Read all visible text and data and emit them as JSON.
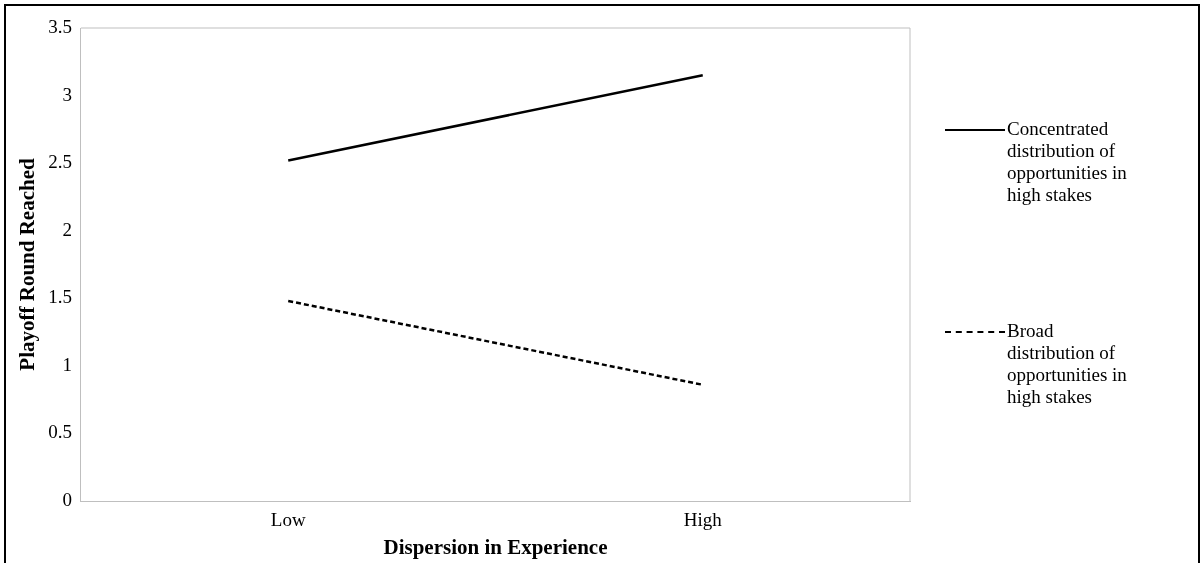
{
  "chart_data": {
    "type": "line",
    "xlabel": "Dispersion in Experience",
    "ylabel": "Playoff Round Reached",
    "categories": [
      "Low",
      "High"
    ],
    "series": [
      {
        "name": "Concentrated distribution of opportunities in high stakes",
        "color": "#000000",
        "line_style": "solid",
        "values": [
          2.52,
          3.15
        ]
      },
      {
        "name": "Broad distribution of opportunities in high stakes",
        "color": "#000000",
        "line_style": "dashed",
        "values": [
          1.48,
          0.86
        ]
      }
    ],
    "ylim": [
      0,
      3.5
    ],
    "yticks": [
      0,
      0.5,
      1,
      1.5,
      2,
      2.5,
      3,
      3.5
    ],
    "grid": false,
    "legend": "right",
    "marker": "none"
  }
}
